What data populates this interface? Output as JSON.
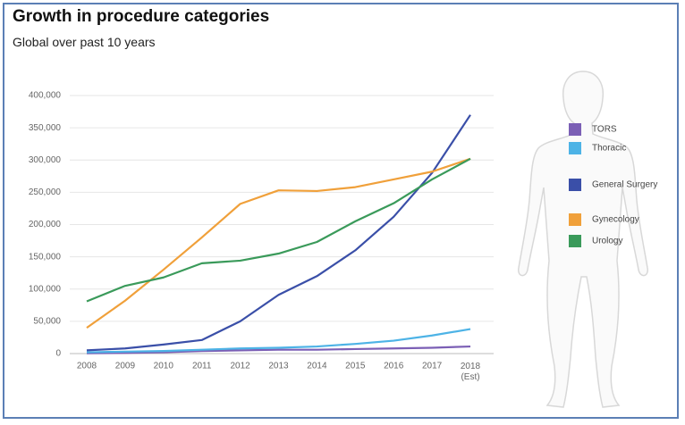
{
  "chart_data": {
    "type": "line",
    "title": "Growth in procedure categories",
    "subtitle": "Global over past 10 years",
    "categories": [
      "2008",
      "2009",
      "2010",
      "2011",
      "2012",
      "2013",
      "2014",
      "2015",
      "2016",
      "2017",
      "2018 (Est)"
    ],
    "ylim": [
      0,
      400000
    ],
    "yticks": [
      0,
      {
        "value": 50000,
        "label": "50,000"
      },
      {
        "value": 100000,
        "label": "100,000"
      },
      {
        "value": 150000,
        "label": "150,000"
      },
      {
        "value": 200000,
        "label": "200,000"
      },
      {
        "value": 250000,
        "label": "250,000"
      },
      {
        "value": 300000,
        "label": "300,000"
      },
      {
        "value": 350000,
        "label": "350,000"
      },
      {
        "value": 400000,
        "label": "400,000"
      }
    ],
    "grid": true,
    "series": [
      {
        "name": "TORS",
        "color": "#7b5fb5",
        "values": [
          500,
          1000,
          2000,
          4000,
          5000,
          6000,
          6000,
          7000,
          8000,
          9000,
          11000
        ]
      },
      {
        "name": "Thoracic",
        "color": "#4db3e6",
        "values": [
          2000,
          3000,
          4000,
          6000,
          8000,
          9000,
          11000,
          15000,
          20000,
          28000,
          38000
        ]
      },
      {
        "name": "General Surgery",
        "color": "#3a4fa8",
        "values": [
          5000,
          8000,
          14000,
          21000,
          50000,
          91000,
          120000,
          160000,
          212000,
          280000,
          370000
        ]
      },
      {
        "name": "Gynecology",
        "color": "#f0a03a",
        "values": [
          40000,
          82000,
          130000,
          180000,
          232000,
          253000,
          252000,
          258000,
          270000,
          282000,
          302000
        ]
      },
      {
        "name": "Urology",
        "color": "#3a9a5a",
        "values": [
          81000,
          105000,
          118000,
          140000,
          144000,
          155000,
          173000,
          205000,
          233000,
          270000,
          302000
        ]
      }
    ]
  }
}
